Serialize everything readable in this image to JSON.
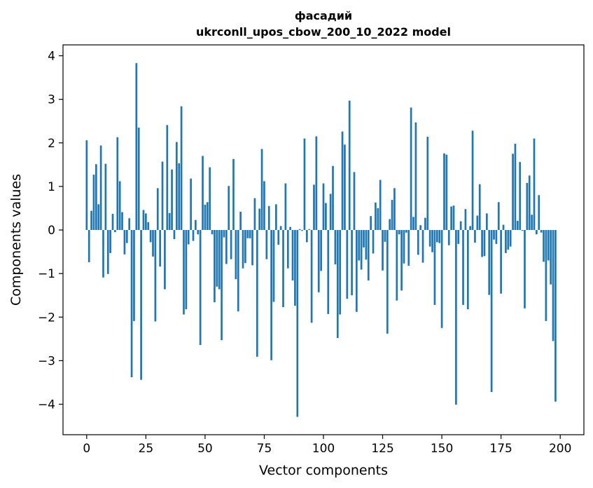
{
  "chart_data": {
    "type": "bar",
    "title_line1": "фасадий",
    "title_line2": "ukrconll_upos_cbow_200_10_2022 model",
    "xlabel": "Vector components",
    "ylabel": "Components values",
    "xlim": [
      -10,
      210
    ],
    "ylim": [
      -4.7,
      4.25
    ],
    "xticks": [
      0,
      25,
      50,
      75,
      100,
      125,
      150,
      175,
      200
    ],
    "yticks": [
      -4,
      -3,
      -2,
      -1,
      0,
      1,
      2,
      3,
      4
    ],
    "grid": false,
    "bar_color": "#1f77b4",
    "values": [
      2.06,
      -0.74,
      0.44,
      1.27,
      1.51,
      0.59,
      1.94,
      -1.09,
      1.52,
      -1.01,
      -0.53,
      0.37,
      -0.05,
      2.13,
      1.12,
      0.41,
      -0.56,
      -0.3,
      0.27,
      -3.38,
      -2.09,
      3.83,
      2.35,
      -3.44,
      0.46,
      0.38,
      0.18,
      -0.28,
      -0.61,
      -2.1,
      0.96,
      -0.84,
      1.57,
      -1.36,
      2.41,
      0.39,
      1.39,
      -0.21,
      2.02,
      1.53,
      2.84,
      -1.94,
      -1.82,
      -0.33,
      1.18,
      -0.25,
      0.23,
      -0.1,
      -2.64,
      1.7,
      0.58,
      0.64,
      1.44,
      -0.1,
      -1.66,
      -1.3,
      -1.36,
      -2.53,
      -0.17,
      -0.78,
      1.01,
      -0.67,
      1.63,
      -1.13,
      -1.87,
      0.42,
      -0.88,
      -0.76,
      -0.19,
      -0.19,
      -0.81,
      0.73,
      -2.91,
      0.49,
      1.86,
      1.12,
      -0.67,
      0.55,
      -2.99,
      -1.65,
      0.59,
      -0.34,
      0.09,
      -1.77,
      1.07,
      -0.88,
      0.07,
      -1.16,
      -1.74,
      -4.29,
      0.02,
      -0.02,
      2.1,
      -0.28,
      0.02,
      -2.13,
      1.04,
      2.15,
      -1.43,
      -0.94,
      1.07,
      0.62,
      -1.93,
      0.83,
      1.47,
      -0.79,
      -2.48,
      -1.94,
      2.26,
      1.96,
      -1.58,
      2.97,
      -1.5,
      1.33,
      -1.88,
      -0.7,
      -0.91,
      -0.4,
      -0.68,
      -1.16,
      0.32,
      -0.54,
      0.63,
      0.5,
      1.15,
      -0.93,
      -0.27,
      -2.38,
      0.25,
      0.69,
      0.96,
      -1.62,
      -0.1,
      -1.39,
      -0.77,
      -0.06,
      -0.82,
      2.81,
      0.3,
      2.47,
      -0.57,
      0.11,
      -0.75,
      0.28,
      2.14,
      -0.38,
      -0.51,
      -1.72,
      -0.28,
      -0.3,
      -2.25,
      1.76,
      1.73,
      -0.35,
      0.54,
      0.56,
      -4.01,
      -0.32,
      0.2,
      -1.72,
      0.48,
      -1.82,
      0.09,
      2.28,
      -0.29,
      0.33,
      1.05,
      -0.62,
      -0.6,
      0.38,
      -1.49,
      -3.72,
      -0.22,
      -0.32,
      0.64,
      -1.46,
      0.12,
      -0.53,
      -0.45,
      -0.38,
      1.75,
      1.98,
      0.21,
      1.56,
      -0.02,
      -1.8,
      1.08,
      1.25,
      0.35,
      2.1,
      -0.1,
      0.8,
      -0.06,
      -0.73,
      -2.09,
      -0.7,
      -1.25,
      -2.55,
      -3.94
    ]
  }
}
